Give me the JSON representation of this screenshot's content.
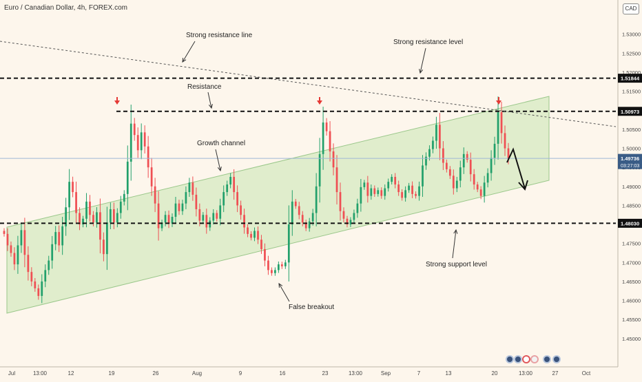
{
  "title": "Euro / Canadian Dollar, 4h, FOREX.com",
  "currency": "CAD",
  "chart_data": {
    "type": "candlestick",
    "x_ticks": [
      "Jul",
      "13:00",
      "12",
      "19",
      "26",
      "Aug",
      "9",
      "16",
      "23",
      "13:00",
      "Sep",
      "7",
      "13",
      "20",
      "13:00",
      "27",
      "Oct"
    ],
    "y_ticks": [
      "1.45000",
      "1.45500",
      "1.46000",
      "1.46500",
      "1.47000",
      "1.47500",
      "1.48000",
      "1.48500",
      "1.49000",
      "1.49500",
      "1.50000",
      "1.50500",
      "1.51000",
      "1.51500",
      "1.52000",
      "1.52500",
      "1.53000",
      "1.53500"
    ],
    "ylim": [
      1.4425,
      1.539
    ],
    "price_labels": [
      {
        "price": 1.51844,
        "text": "1.51844"
      },
      {
        "price": 1.50973,
        "text": "1.50973"
      },
      {
        "price": 1.49736,
        "text": "1.49736",
        "sub": "03:27:03"
      },
      {
        "price": 1.4803,
        "text": "1.48030"
      }
    ],
    "candles_close": [
      1.4775,
      1.4745,
      1.4725,
      1.4695,
      1.4745,
      1.4785,
      1.472,
      1.4675,
      1.465,
      1.4632,
      1.4612,
      1.465,
      1.468,
      1.4705,
      1.4748,
      1.478,
      1.4745,
      1.4795,
      1.4845,
      1.4912,
      1.4885,
      1.483,
      1.48,
      1.4815,
      1.486,
      1.4825,
      1.4805,
      1.4832,
      1.476,
      1.4722,
      1.4805,
      1.484,
      1.4805,
      1.483,
      1.486,
      1.488,
      1.4965,
      1.5065,
      1.5035,
      1.4995,
      1.5042,
      1.5005,
      1.495,
      1.49,
      1.4855,
      1.479,
      1.4805,
      1.4825,
      1.4802,
      1.482,
      1.4855,
      1.4835,
      1.4855,
      1.4885,
      1.491,
      1.4878,
      1.484,
      1.481,
      1.4825,
      1.4792,
      1.481,
      1.483,
      1.4815,
      1.485,
      1.4885,
      1.4905,
      1.4925,
      1.4885,
      1.485,
      1.4825,
      1.4792,
      1.4775,
      1.4765,
      1.4783,
      1.476,
      1.4735,
      1.4705,
      1.468,
      1.4672,
      1.468,
      1.4695,
      1.469,
      1.47,
      1.48,
      1.486,
      1.4848,
      1.4825,
      1.4805,
      1.479,
      1.4808,
      1.483,
      1.49,
      1.4985,
      1.5068,
      1.5045,
      1.4992,
      1.495,
      1.4885,
      1.4835,
      1.4815,
      1.48,
      1.4812,
      1.483,
      1.4855,
      1.4898,
      1.491,
      1.4875,
      1.4895,
      1.488,
      1.489,
      1.4875,
      1.4895,
      1.4912,
      1.4925,
      1.4905,
      1.4885,
      1.487,
      1.489,
      1.4902,
      1.488,
      1.4875,
      1.49,
      1.4955,
      1.4978,
      1.4998,
      1.502,
      1.5062,
      1.5,
      1.4962,
      1.4945,
      1.4928,
      1.4895,
      1.4915,
      1.495,
      1.4985,
      1.497,
      1.4932,
      1.4905,
      1.4892,
      1.4875,
      1.491,
      1.4935,
      1.4975,
      1.5012,
      1.5095,
      1.504,
      1.5,
      1.4972
    ],
    "overlays": {
      "resistance_level": 1.51844,
      "resistance": 1.50973,
      "support": 1.4803,
      "current_price": 1.49736
    },
    "annotations": [
      "Strong resistance line",
      "Strong resistance level",
      "Resistance",
      "Growth channel",
      "False breakout",
      "Strong support level"
    ]
  },
  "ui": {
    "icons": [
      "target-icon",
      "emoji-icon",
      "flag-icon",
      "calendar-icon",
      "clock-icon",
      "eye-icon"
    ],
    "colors": {
      "up": "#22a06b",
      "down": "#ef4f53",
      "channel_fill": "#d8ebc4",
      "channel_stroke": "#9ac78a",
      "arrow_red": "#e53935",
      "background": "#fdf6ec"
    }
  }
}
